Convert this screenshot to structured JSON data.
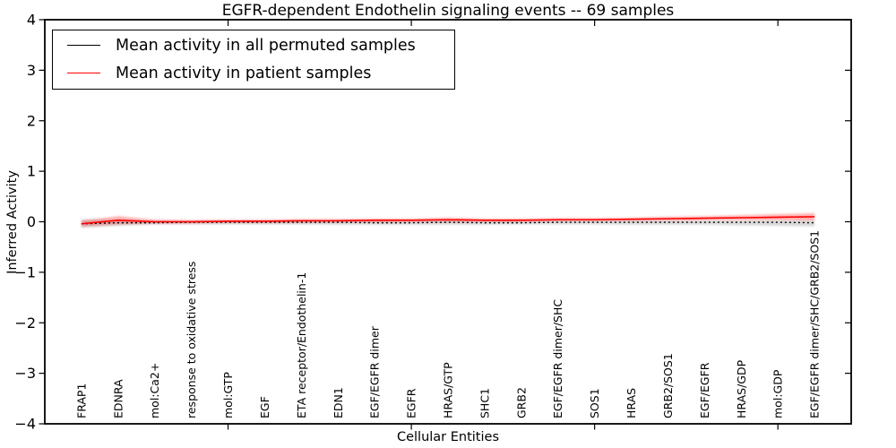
{
  "chart_data": {
    "type": "line",
    "title": "EGFR-dependent Endothelin signaling events -- 69 samples",
    "xlabel": "Cellular Entities",
    "ylabel": "Inferred Activity",
    "ylim": [
      -4,
      4
    ],
    "ytick_labels": [
      "4",
      "3",
      "2",
      "1",
      "0",
      "−1",
      "−2",
      "−3",
      "−4"
    ],
    "ytick_values": [
      4,
      3,
      2,
      1,
      0,
      -1,
      -2,
      -3,
      -4
    ],
    "xtick_mark_positions": [
      5,
      10,
      15,
      20
    ],
    "grid": false,
    "legend_position": "upper left",
    "categories": [
      "FRAP1",
      "EDNRA",
      "mol:Ca2+",
      "response to oxidative stress",
      "mol:GTP",
      "EGF",
      "ETA receptor/Endothelin-1",
      "EDN1",
      "EGF/EGFR dimer",
      "EGFR",
      "HRAS/GTP",
      "SHC1",
      "GRB2",
      "EGF/EGFR dimer/SHC",
      "SOS1",
      "HRAS",
      "GRB2/SOS1",
      "EGF/EGFR",
      "HRAS/GDP",
      "mol:GDP",
      "EGF/EGFR dimer/SHC/GRB2/SOS1"
    ],
    "series": [
      {
        "name": "Mean activity in all permuted samples",
        "color": "#000000",
        "line_style": "dotted",
        "values": [
          -0.04,
          -0.02,
          -0.02,
          -0.01,
          -0.01,
          -0.01,
          -0.01,
          -0.01,
          -0.02,
          -0.02,
          -0.01,
          -0.02,
          -0.02,
          -0.01,
          -0.01,
          -0.01,
          -0.01,
          -0.01,
          -0.01,
          -0.01,
          -0.02
        ]
      },
      {
        "name": "Mean activity in patient samples",
        "color": "#ff0000",
        "line_style": "solid",
        "values": [
          -0.04,
          0.03,
          0.0,
          0.0,
          0.01,
          0.01,
          0.02,
          0.02,
          0.03,
          0.03,
          0.04,
          0.03,
          0.03,
          0.04,
          0.04,
          0.05,
          0.06,
          0.07,
          0.08,
          0.09,
          0.1
        ]
      }
    ],
    "bands": [
      {
        "name": "permuted-sample-range",
        "color": "#999999",
        "opacity": 0.38,
        "upper": [
          0.05,
          0.03,
          0.02,
          0.02,
          0.02,
          0.02,
          0.02,
          0.02,
          0.02,
          0.02,
          0.03,
          0.02,
          0.02,
          0.02,
          0.02,
          0.02,
          0.02,
          0.02,
          0.02,
          0.02,
          0.02
        ],
        "lower": [
          -0.12,
          -0.08,
          -0.05,
          -0.05,
          -0.05,
          -0.05,
          -0.05,
          -0.06,
          -0.06,
          -0.06,
          -0.06,
          -0.06,
          -0.05,
          -0.05,
          -0.05,
          -0.06,
          -0.06,
          -0.06,
          -0.07,
          -0.08,
          -0.09
        ]
      },
      {
        "name": "patient-sample-range",
        "color": "#ff0000",
        "opacity": 0.3,
        "upper": [
          0.02,
          0.11,
          0.04,
          0.03,
          0.04,
          0.04,
          0.05,
          0.05,
          0.06,
          0.06,
          0.08,
          0.06,
          0.06,
          0.07,
          0.07,
          0.08,
          0.1,
          0.11,
          0.13,
          0.15,
          0.17
        ],
        "lower": [
          -0.09,
          -0.05,
          -0.03,
          -0.03,
          -0.02,
          -0.02,
          -0.02,
          -0.01,
          -0.01,
          0.0,
          0.0,
          0.0,
          0.0,
          0.01,
          0.01,
          0.02,
          0.02,
          0.03,
          0.03,
          0.03,
          0.02
        ]
      }
    ]
  }
}
